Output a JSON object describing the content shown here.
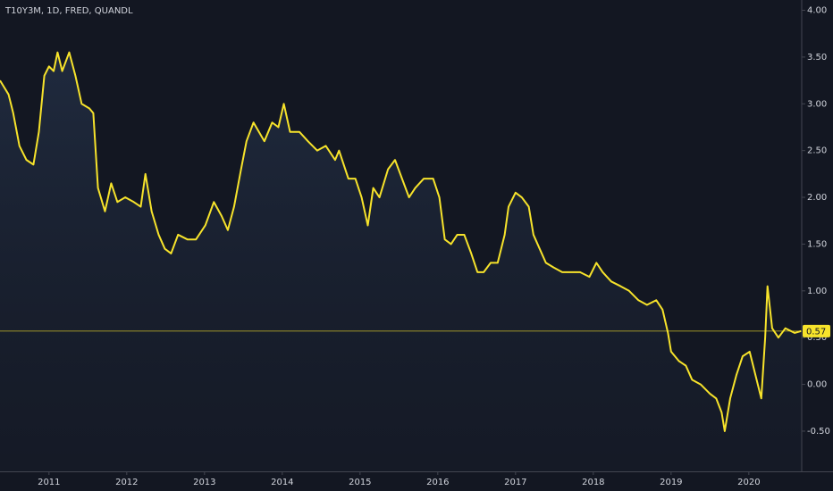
{
  "chart_data": {
    "type": "line",
    "title": "T10Y3M, 1D, FRED, QUANDL",
    "x": [
      2010.37,
      2010.48,
      2010.54,
      2010.62,
      2010.71,
      2010.8,
      2010.87,
      2010.94,
      2011.0,
      2011.06,
      2011.11,
      2011.17,
      2011.26,
      2011.34,
      2011.42,
      2011.52,
      2011.57,
      2011.63,
      2011.72,
      2011.8,
      2011.88,
      2011.98,
      2012.09,
      2012.18,
      2012.24,
      2012.32,
      2012.41,
      2012.49,
      2012.57,
      2012.66,
      2012.78,
      2012.89,
      2013.01,
      2013.12,
      2013.22,
      2013.3,
      2013.38,
      2013.47,
      2013.54,
      2013.63,
      2013.7,
      2013.77,
      2013.87,
      2013.95,
      2014.02,
      2014.1,
      2014.22,
      2014.33,
      2014.45,
      2014.56,
      2014.68,
      2014.73,
      2014.85,
      2014.94,
      2015.02,
      2015.1,
      2015.17,
      2015.25,
      2015.36,
      2015.45,
      2015.54,
      2015.63,
      2015.71,
      2015.82,
      2015.94,
      2016.02,
      2016.09,
      2016.17,
      2016.25,
      2016.34,
      2016.43,
      2016.51,
      2016.59,
      2016.68,
      2016.77,
      2016.86,
      2016.91,
      2017.0,
      2017.08,
      2017.17,
      2017.23,
      2017.31,
      2017.39,
      2017.49,
      2017.6,
      2017.72,
      2017.83,
      2017.95,
      2018.04,
      2018.12,
      2018.23,
      2018.35,
      2018.46,
      2018.58,
      2018.69,
      2018.81,
      2018.89,
      2018.96,
      2019.0,
      2019.1,
      2019.19,
      2019.27,
      2019.38,
      2019.5,
      2019.58,
      2019.65,
      2019.69,
      2019.76,
      2019.84,
      2019.92,
      2020.01,
      2020.1,
      2020.16,
      2020.21,
      2020.24,
      2020.3,
      2020.38,
      2020.47,
      2020.59,
      2020.67
    ],
    "values": [
      3.25,
      3.1,
      2.9,
      2.55,
      2.4,
      2.35,
      2.7,
      3.3,
      3.4,
      3.35,
      3.55,
      3.35,
      3.55,
      3.3,
      3.0,
      2.95,
      2.9,
      2.1,
      1.85,
      2.15,
      1.95,
      2.0,
      1.95,
      1.9,
      2.25,
      1.85,
      1.6,
      1.45,
      1.4,
      1.6,
      1.55,
      1.55,
      1.7,
      1.95,
      1.8,
      1.65,
      1.9,
      2.3,
      2.6,
      2.8,
      2.7,
      2.6,
      2.8,
      2.75,
      3.0,
      2.7,
      2.7,
      2.6,
      2.5,
      2.55,
      2.4,
      2.5,
      2.2,
      2.2,
      2.0,
      1.7,
      2.1,
      2.0,
      2.3,
      2.4,
      2.2,
      2.0,
      2.1,
      2.2,
      2.2,
      2.0,
      1.55,
      1.5,
      1.6,
      1.6,
      1.4,
      1.2,
      1.2,
      1.3,
      1.3,
      1.6,
      1.9,
      2.05,
      2.0,
      1.9,
      1.6,
      1.45,
      1.3,
      1.25,
      1.2,
      1.2,
      1.2,
      1.15,
      1.3,
      1.2,
      1.1,
      1.05,
      1.0,
      0.9,
      0.85,
      0.9,
      0.8,
      0.55,
      0.35,
      0.25,
      0.2,
      0.05,
      0.0,
      -0.1,
      -0.15,
      -0.3,
      -0.5,
      -0.15,
      0.1,
      0.3,
      0.35,
      0.05,
      -0.15,
      0.5,
      1.05,
      0.6,
      0.5,
      0.6,
      0.55,
      0.57
    ],
    "color": "#f7e32b",
    "last_value": 0.57,
    "xlim": [
      2010.37,
      2020.68
    ],
    "xticks": [
      2011,
      2012,
      2013,
      2014,
      2015,
      2016,
      2017,
      2018,
      2019,
      2020
    ],
    "ylim": [
      -0.93,
      4.11
    ],
    "yticks": [
      {
        "value": 4,
        "label": "4.00"
      },
      {
        "value": 3.5,
        "label": "3.50"
      },
      {
        "value": 3,
        "label": "3.00"
      },
      {
        "value": 2.5,
        "label": "2.50"
      },
      {
        "value": 2,
        "label": "2.00"
      },
      {
        "value": 1.5,
        "label": "1.50"
      },
      {
        "value": 1,
        "label": "1.00"
      },
      {
        "value": 0.5,
        "label": "0.50"
      },
      {
        "value": 0,
        "label": "0.00"
      },
      {
        "value": -0.5,
        "label": "-0.50"
      }
    ],
    "grid": false
  }
}
